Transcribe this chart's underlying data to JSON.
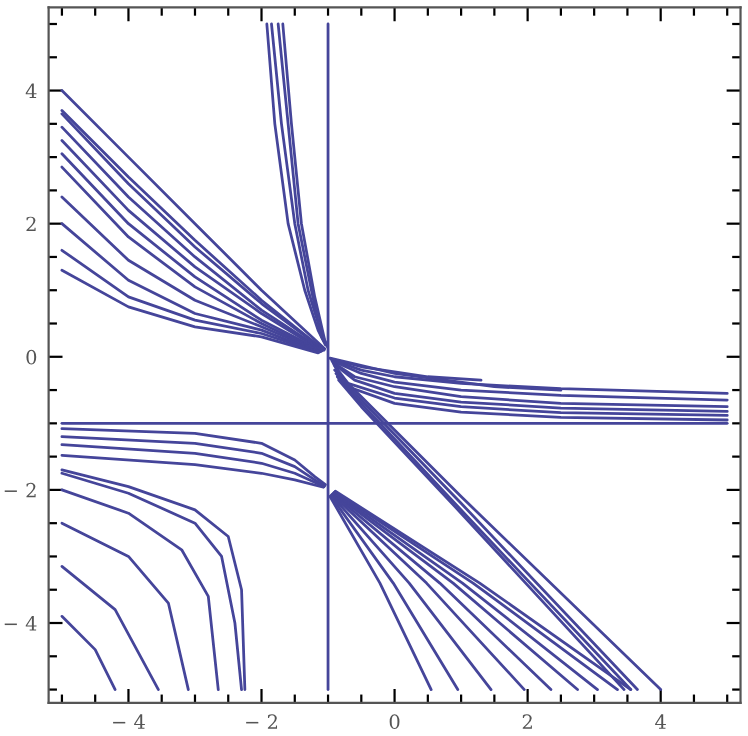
{
  "chart_data": {
    "type": "line",
    "xlim": [
      -5.2,
      5.2
    ],
    "ylim": [
      -5.2,
      5.25
    ],
    "xticks": [
      {
        "value": -5,
        "label": null
      },
      {
        "value": -4.5,
        "label": null
      },
      -4,
      {
        "value": -3.5,
        "label": null
      },
      {
        "value": -3,
        "label": null
      },
      {
        "value": -2.5,
        "label": null
      },
      -2,
      {
        "value": -1.5,
        "label": null
      },
      {
        "value": -1,
        "label": null
      },
      {
        "value": -0.5,
        "label": null
      },
      0,
      {
        "value": 0.5,
        "label": null
      },
      {
        "value": 1,
        "label": null
      },
      {
        "value": 1.5,
        "label": null
      },
      2,
      {
        "value": 2.5,
        "label": null
      },
      {
        "value": 3,
        "label": null
      },
      {
        "value": 3.5,
        "label": null
      },
      4,
      {
        "value": 4.5,
        "label": null
      },
      {
        "value": 5,
        "label": null
      }
    ],
    "yticks": [
      {
        "value": -5,
        "label": null
      },
      {
        "value": -4.5,
        "label": null
      },
      -4,
      {
        "value": -3.5,
        "label": null
      },
      {
        "value": -3,
        "label": null
      },
      {
        "value": -2.5,
        "label": null
      },
      -2,
      {
        "value": -1.5,
        "label": null
      },
      {
        "value": -1,
        "label": null
      },
      {
        "value": -0.5,
        "label": null
      },
      0,
      {
        "value": 0.5,
        "label": null
      },
      {
        "value": 1,
        "label": null
      },
      {
        "value": 1.5,
        "label": null
      },
      2,
      {
        "value": 2.5,
        "label": null
      },
      {
        "value": 3,
        "label": null
      },
      {
        "value": 3.5,
        "label": null
      },
      4,
      {
        "value": 4.5,
        "label": null
      },
      {
        "value": 5,
        "label": null
      }
    ],
    "grid": false,
    "legend": false,
    "series": [
      {
        "color": "#45459a",
        "x": [
          -1,
          -1
        ],
        "values": [
          -5,
          5
        ]
      },
      {
        "color": "#45459a",
        "x": [
          -5,
          5
        ],
        "values": [
          -1,
          -1
        ]
      },
      {
        "color": "#45459a",
        "x": [
          -5,
          -4,
          -3,
          -2,
          -1.05
        ],
        "values": [
          4.0,
          3.0,
          2.0,
          1.0,
          0.12
        ]
      },
      {
        "color": "#45459a",
        "x": [
          -5,
          -4,
          -3,
          -2,
          -1.06
        ],
        "values": [
          3.7,
          2.7,
          1.75,
          0.85,
          0.1
        ]
      },
      {
        "color": "#45459a",
        "x": [
          -5,
          -4,
          -3,
          -2,
          -1.07
        ],
        "values": [
          3.65,
          2.6,
          1.65,
          0.8,
          0.11
        ]
      },
      {
        "color": "#45459a",
        "x": [
          -5,
          -4,
          -3,
          -2,
          -1.08
        ],
        "values": [
          3.45,
          2.4,
          1.5,
          0.7,
          0.1
        ]
      },
      {
        "color": "#45459a",
        "x": [
          -5,
          -4,
          -3,
          -2,
          -1.09
        ],
        "values": [
          3.25,
          2.2,
          1.35,
          0.65,
          0.09
        ]
      },
      {
        "color": "#45459a",
        "x": [
          -5,
          -4,
          -3,
          -2,
          -1.1
        ],
        "values": [
          3.05,
          2.0,
          1.2,
          0.55,
          0.09
        ]
      },
      {
        "color": "#45459a",
        "x": [
          -5,
          -4,
          -3,
          -2,
          -1.11
        ],
        "values": [
          2.85,
          1.8,
          1.05,
          0.5,
          0.08
        ]
      },
      {
        "color": "#45459a",
        "x": [
          -5,
          -4,
          -3,
          -2,
          -1.12
        ],
        "values": [
          2.4,
          1.45,
          0.85,
          0.45,
          0.08
        ]
      },
      {
        "color": "#45459a",
        "x": [
          -5,
          -4,
          -3,
          -2,
          -1.13
        ],
        "values": [
          2.0,
          1.15,
          0.65,
          0.4,
          0.07
        ]
      },
      {
        "color": "#45459a",
        "x": [
          -5,
          -4,
          -3,
          -2,
          -1.14
        ],
        "values": [
          1.6,
          0.9,
          0.55,
          0.35,
          0.07
        ]
      },
      {
        "color": "#45459a",
        "x": [
          -5,
          -4,
          -3,
          -2,
          -1.15
        ],
        "values": [
          1.3,
          0.75,
          0.45,
          0.3,
          0.06
        ]
      },
      {
        "color": "#45459a",
        "x": [
          -1.92,
          -1.8,
          -1.6,
          -1.35,
          -1.15,
          -1.04
        ],
        "values": [
          5,
          3.5,
          2,
          1,
          0.4,
          0.18
        ]
      },
      {
        "color": "#45459a",
        "x": [
          -1.85,
          -1.7,
          -1.5,
          -1.3,
          -1.1,
          -1.03
        ],
        "values": [
          5,
          3.5,
          2,
          1,
          0.35,
          0.2
        ]
      },
      {
        "color": "#45459a",
        "x": [
          -1.75,
          -1.6,
          -1.45,
          -1.25,
          -1.1,
          -1.02
        ],
        "values": [
          5,
          3.5,
          2,
          1,
          0.3,
          0.17
        ]
      },
      {
        "color": "#45459a",
        "x": [
          -1.68,
          -1.55,
          -1.4,
          -1.2,
          -1.05,
          -1.01
        ],
        "values": [
          5,
          3.5,
          2,
          0.9,
          0.25,
          0.15
        ]
      },
      {
        "color": "#45459a",
        "x": [
          -0.95,
          -0.5,
          0,
          1,
          2.5,
          5
        ],
        "values": [
          -0.04,
          -0.2,
          -0.3,
          -0.4,
          -0.48,
          -0.55
        ]
      },
      {
        "color": "#45459a",
        "x": [
          -0.94,
          -0.5,
          0,
          1,
          2.5,
          5
        ],
        "values": [
          -0.06,
          -0.25,
          -0.38,
          -0.5,
          -0.58,
          -0.65
        ]
      },
      {
        "color": "#45459a",
        "x": [
          -0.93,
          -0.6,
          0,
          1,
          2.5,
          5
        ],
        "values": [
          -0.08,
          -0.3,
          -0.45,
          -0.6,
          -0.7,
          -0.75
        ]
      },
      {
        "color": "#45459a",
        "x": [
          -0.92,
          -0.6,
          0,
          1,
          2.5,
          5
        ],
        "values": [
          -0.1,
          -0.35,
          -0.55,
          -0.68,
          -0.77,
          -0.82
        ]
      },
      {
        "color": "#45459a",
        "x": [
          -0.91,
          -0.7,
          0,
          1,
          2.5,
          5
        ],
        "values": [
          -0.12,
          -0.4,
          -0.62,
          -0.75,
          -0.84,
          -0.88
        ]
      },
      {
        "color": "#45459a",
        "x": [
          -0.9,
          -0.7,
          0,
          1,
          2.5,
          5
        ],
        "values": [
          -0.14,
          -0.45,
          -0.7,
          -0.83,
          -0.91,
          -0.95
        ]
      },
      {
        "color": "#45459a",
        "x": [
          -0.96,
          -0.5,
          0.5,
          1.3
        ],
        "values": [
          -0.03,
          -0.15,
          -0.3,
          -0.35
        ]
      },
      {
        "color": "#45459a",
        "x": [
          -0.97,
          0,
          1.5,
          2.5
        ],
        "values": [
          -0.02,
          -0.25,
          -0.45,
          -0.5
        ]
      },
      {
        "color": "#45459a",
        "x": [
          -0.9,
          -0.5,
          1,
          4.0
        ],
        "values": [
          -0.2,
          -0.6,
          -2.1,
          -5
        ]
      },
      {
        "color": "#45459a",
        "x": [
          -0.88,
          -0.5,
          1,
          3.65
        ],
        "values": [
          -0.25,
          -0.65,
          -2.2,
          -5
        ]
      },
      {
        "color": "#45459a",
        "x": [
          -0.86,
          -0.5,
          1,
          3.55
        ],
        "values": [
          -0.3,
          -0.7,
          -2.3,
          -5
        ]
      },
      {
        "color": "#45459a",
        "x": [
          -0.84,
          -0.5,
          1,
          3.45
        ],
        "values": [
          -0.35,
          -0.75,
          -2.35,
          -5
        ]
      },
      {
        "color": "#45459a",
        "x": [
          -5,
          -3,
          -2,
          -1.5,
          -1.2,
          -1.04
        ],
        "values": [
          -1.08,
          -1.15,
          -1.3,
          -1.55,
          -1.8,
          -1.92
        ]
      },
      {
        "color": "#45459a",
        "x": [
          -5,
          -3,
          -2,
          -1.5,
          -1.2,
          -1.05
        ],
        "values": [
          -1.2,
          -1.3,
          -1.45,
          -1.65,
          -1.85,
          -1.94
        ]
      },
      {
        "color": "#45459a",
        "x": [
          -5,
          -3,
          -2,
          -1.5,
          -1.06
        ],
        "values": [
          -1.32,
          -1.45,
          -1.6,
          -1.75,
          -1.95
        ]
      },
      {
        "color": "#45459a",
        "x": [
          -5,
          -3,
          -2,
          -1.5,
          -1.07
        ],
        "values": [
          -1.48,
          -1.62,
          -1.75,
          -1.85,
          -1.96
        ]
      },
      {
        "color": "#45459a",
        "x": [
          -5,
          -4,
          -3,
          -2.5,
          -2.3,
          -2.25
        ],
        "values": [
          -1.7,
          -1.95,
          -2.3,
          -2.7,
          -3.5,
          -5
        ]
      },
      {
        "color": "#45459a",
        "x": [
          -5,
          -4,
          -3,
          -2.6,
          -2.4,
          -2.3
        ],
        "values": [
          -1.75,
          -2.05,
          -2.5,
          -3.0,
          -4,
          -5
        ]
      },
      {
        "color": "#45459a",
        "x": [
          -5,
          -4,
          -3.2,
          -2.8,
          -2.65
        ],
        "values": [
          -2.0,
          -2.35,
          -2.9,
          -3.6,
          -5
        ]
      },
      {
        "color": "#45459a",
        "x": [
          -5,
          -4,
          -3.4,
          -3.1
        ],
        "values": [
          -2.5,
          -3.0,
          -3.7,
          -5
        ]
      },
      {
        "color": "#45459a",
        "x": [
          -5,
          -4.2,
          -3.55
        ],
        "values": [
          -3.15,
          -3.8,
          -5
        ]
      },
      {
        "color": "#45459a",
        "x": [
          -5,
          -4.5,
          -4.2
        ],
        "values": [
          -3.9,
          -4.4,
          -5
        ]
      },
      {
        "color": "#45459a",
        "x": [
          -0.97,
          -0.22,
          0.55
        ],
        "values": [
          -2.1,
          -3.4,
          -5
        ]
      },
      {
        "color": "#45459a",
        "x": [
          -0.96,
          -0.02,
          0.95
        ],
        "values": [
          -2.09,
          -3.4,
          -5
        ]
      },
      {
        "color": "#45459a",
        "x": [
          -0.95,
          0.22,
          1.45
        ],
        "values": [
          -2.08,
          -3.4,
          -5
        ]
      },
      {
        "color": "#45459a",
        "x": [
          -0.94,
          0.48,
          1.95
        ],
        "values": [
          -2.07,
          -3.4,
          -5
        ]
      },
      {
        "color": "#45459a",
        "x": [
          -0.93,
          0.68,
          2.35
        ],
        "values": [
          -2.06,
          -3.4,
          -5
        ]
      },
      {
        "color": "#45459a",
        "x": [
          -0.92,
          0.88,
          2.75
        ],
        "values": [
          -2.05,
          -3.4,
          -5
        ]
      },
      {
        "color": "#45459a",
        "x": [
          -0.91,
          1.02,
          3.05
        ],
        "values": [
          -2.04,
          -3.4,
          -5
        ]
      },
      {
        "color": "#45459a",
        "x": [
          -0.9,
          1.18,
          3.35
        ],
        "values": [
          -2.03,
          -3.4,
          -5
        ]
      },
      {
        "color": "#45459a",
        "x": [
          -0.89,
          1.28,
          3.55
        ],
        "values": [
          -2.02,
          -3.4,
          -5
        ]
      }
    ]
  }
}
